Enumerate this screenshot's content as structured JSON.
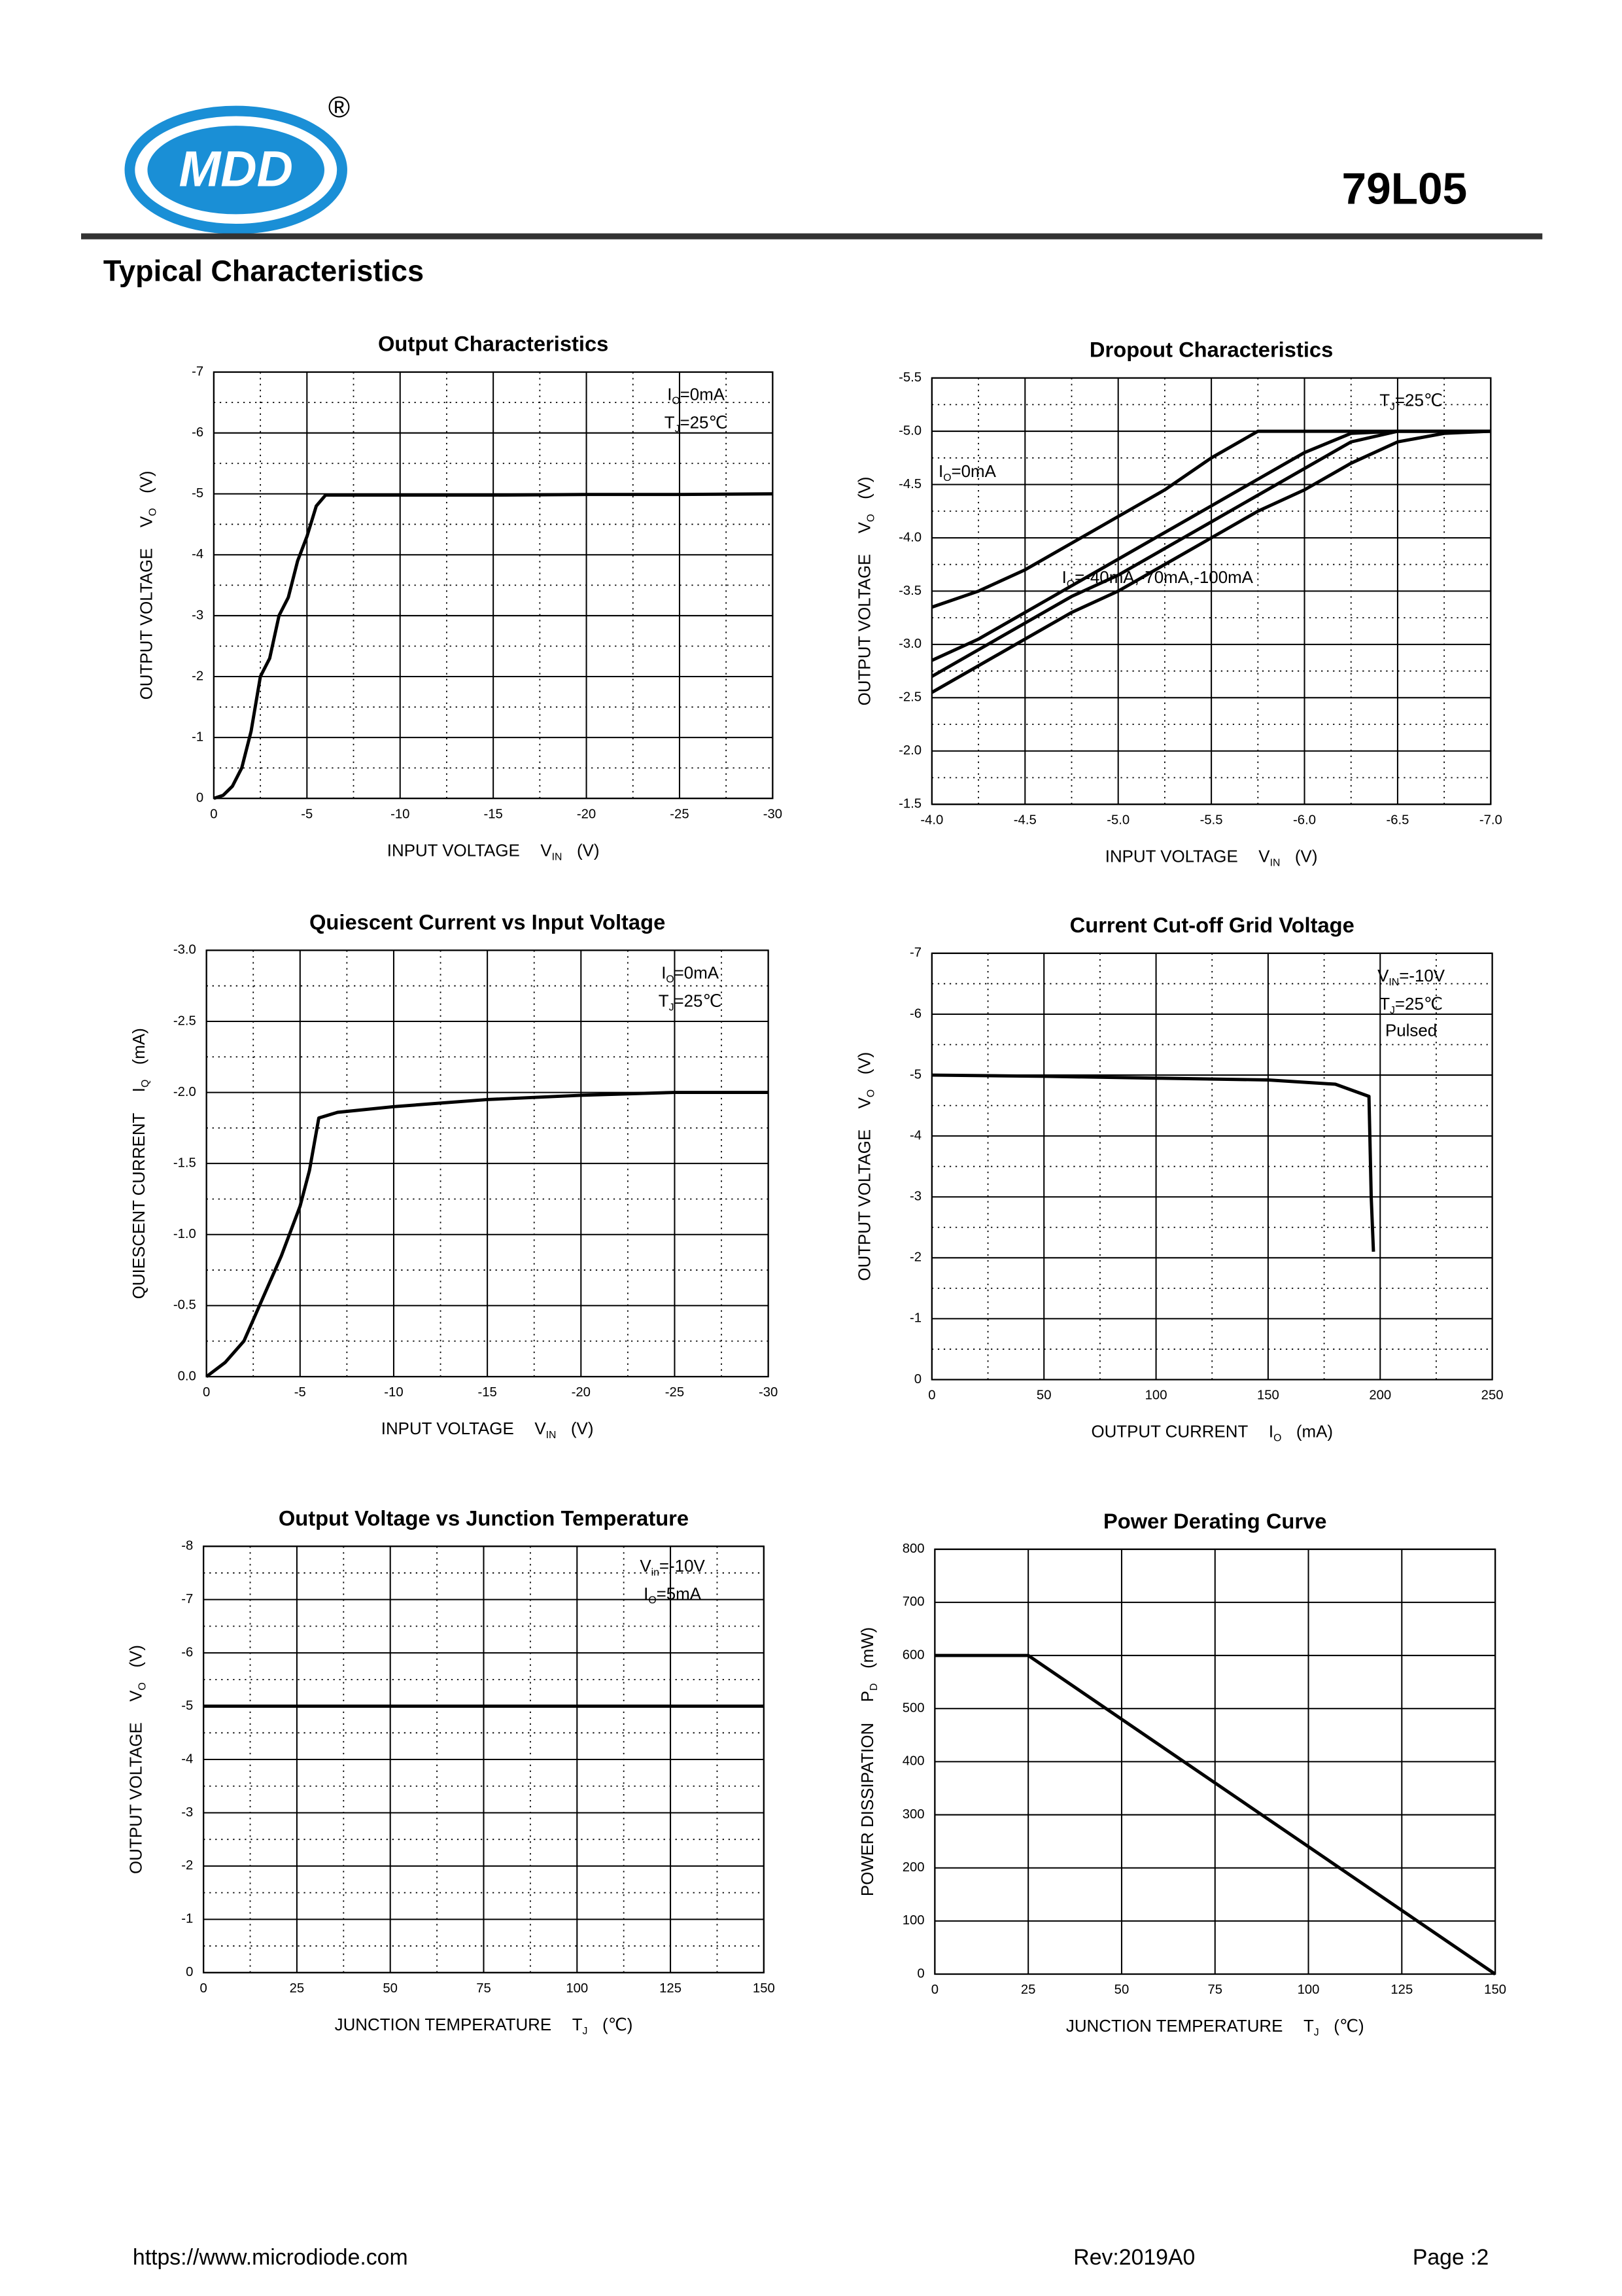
{
  "header": {
    "logo": "MDD",
    "registered": "®",
    "part": "79L05",
    "section_title": "Typical Characteristics"
  },
  "chart_data": [
    {
      "type": "line",
      "title": "Output  Characteristics",
      "x_label": {
        "text": "INPUT VOLTAGE",
        "symbol": "V",
        "sub": "IN",
        "unit": "(V)"
      },
      "y_label": {
        "text": "OUTPUT VOLTAGE",
        "symbol": "V",
        "sub": "O",
        "unit": "(V)"
      },
      "annotations": [
        [
          "I",
          "O",
          "=0mA"
        ],
        [
          "T",
          "J",
          "=25℃"
        ]
      ],
      "x": [
        0,
        -0.5,
        -1,
        -1.5,
        -2,
        -2.5,
        -3,
        -3.5,
        -4,
        -4.5,
        -5,
        -5.5,
        -6,
        -10,
        -15,
        -20,
        -25,
        -30
      ],
      "series": [
        {
          "color": "#000000",
          "values": [
            0,
            -0.05,
            -0.2,
            -0.5,
            -1.1,
            -2,
            -2.3,
            -3,
            -3.3,
            -3.9,
            -4.3,
            -4.8,
            -4.98,
            -4.98,
            -4.98,
            -4.99,
            -4.99,
            -5
          ]
        }
      ],
      "xlim": [
        0,
        -30
      ],
      "xticks": [
        0,
        -5,
        -10,
        -15,
        -20,
        -25,
        -30
      ],
      "ylim": [
        0,
        -7
      ],
      "yticks": [
        0,
        -1,
        -2,
        -3,
        -4,
        -5,
        -6,
        -7
      ],
      "grid": true,
      "minor_grid": true
    },
    {
      "type": "line",
      "title": "Dropout Characteristics",
      "x_label": {
        "text": "INPUT VOLTAGE",
        "symbol": "V",
        "sub": "IN",
        "unit": "(V)"
      },
      "y_label": {
        "text": "OUTPUT VOLTAGE",
        "symbol": "V",
        "sub": "O",
        "unit": "(V)"
      },
      "annotations": [
        [
          "T",
          "J",
          "=25℃"
        ],
        [
          "I",
          "O",
          "=0mA"
        ],
        [
          "I",
          "O",
          "=-40mA,-70mA,-100mA"
        ]
      ],
      "x": [
        -4.0,
        -4.25,
        -4.5,
        -4.75,
        -5.0,
        -5.25,
        -5.5,
        -5.75,
        -6.0,
        -6.25,
        -6.5,
        -6.75,
        -7.0
      ],
      "series": [
        {
          "color": "#000000",
          "values": [
            -3.35,
            -3.5,
            -3.7,
            -3.95,
            -4.2,
            -4.45,
            -4.75,
            -5.0,
            -5.0,
            -5.0,
            -5.0,
            -5.0,
            -5.0
          ]
        },
        {
          "color": "#000000",
          "values": [
            -2.85,
            -3.05,
            -3.3,
            -3.55,
            -3.8,
            -4.05,
            -4.3,
            -4.55,
            -4.8,
            -4.98,
            -5.0,
            -5.0,
            -5.0
          ]
        },
        {
          "color": "#000000",
          "values": [
            -2.7,
            -2.95,
            -3.2,
            -3.45,
            -3.65,
            -3.9,
            -4.15,
            -4.4,
            -4.65,
            -4.9,
            -5.0,
            -5.0,
            -5.0
          ]
        },
        {
          "color": "#000000",
          "values": [
            -2.55,
            -2.8,
            -3.05,
            -3.3,
            -3.5,
            -3.75,
            -4.0,
            -4.25,
            -4.45,
            -4.7,
            -4.9,
            -4.98,
            -5.0
          ]
        }
      ],
      "xlim": [
        -4.0,
        -7.0
      ],
      "xticks": [
        {
          "value": -4,
          "label": "-4.0"
        },
        -4.5,
        {
          "value": -5,
          "label": "-5.0"
        },
        -5.5,
        {
          "value": -6,
          "label": "-6.0"
        },
        -6.5,
        {
          "value": -7,
          "label": "-7.0"
        }
      ],
      "ylim": [
        -1.5,
        -5.5
      ],
      "yticks": [
        -1.5,
        {
          "value": -2,
          "label": "-2.0"
        },
        -2.5,
        {
          "value": -3,
          "label": "-3.0"
        },
        -3.5,
        {
          "value": -4,
          "label": "-4.0"
        },
        -4.5,
        {
          "value": -5,
          "label": "-5.0"
        },
        -5.5
      ],
      "grid": true,
      "minor_grid": true
    },
    {
      "type": "line",
      "title": "Quiescent Current vs Input Voltage",
      "x_label": {
        "text": "INPUT VOLTAGE",
        "symbol": "V",
        "sub": "IN",
        "unit": "(V)"
      },
      "y_label": {
        "text": "QUIESCENT CURRENT",
        "symbol": "I",
        "sub": "Q",
        "unit": "(mA)"
      },
      "annotations": [
        [
          "I",
          "O",
          "=0mA"
        ],
        [
          "T",
          "J",
          "=25℃"
        ]
      ],
      "x": [
        0,
        -1,
        -2,
        -2.5,
        -3,
        -4,
        -5,
        -5.5,
        -6,
        -7,
        -10,
        -15,
        -20,
        -25,
        -30
      ],
      "series": [
        {
          "color": "#000000",
          "values": [
            0,
            -0.1,
            -0.25,
            -0.4,
            -0.55,
            -0.85,
            -1.2,
            -1.45,
            -1.82,
            -1.86,
            -1.9,
            -1.95,
            -1.98,
            -2.0,
            -2.0
          ]
        }
      ],
      "xlim": [
        0,
        -30
      ],
      "xticks": [
        0,
        -5,
        -10,
        -15,
        -20,
        -25,
        -30
      ],
      "ylim": [
        0,
        -3
      ],
      "yticks": [
        {
          "value": 0,
          "label": "0.0"
        },
        -0.5,
        {
          "value": -1,
          "label": "-1.0"
        },
        -1.5,
        {
          "value": -2,
          "label": "-2.0"
        },
        -2.5,
        {
          "value": -3,
          "label": "-3.0"
        }
      ],
      "grid": true,
      "minor_grid": true
    },
    {
      "type": "line",
      "title": "Current  Cut-off Grid Voltage",
      "x_label": {
        "text": "OUTPUT CURRENT",
        "symbol": "I",
        "sub": "O",
        "unit": "(mA)"
      },
      "y_label": {
        "text": "OUTPUT VOLTAGE",
        "symbol": "V",
        "sub": "O",
        "unit": "(V)"
      },
      "annotations": [
        [
          "V",
          "IN",
          "=-10V"
        ],
        [
          "T",
          "J",
          "=25℃"
        ],
        [
          "Pulsed",
          "",
          ""
        ]
      ],
      "x": [
        0,
        50,
        100,
        150,
        180,
        195,
        196,
        197
      ],
      "series": [
        {
          "color": "#000000",
          "values": [
            -5.0,
            -4.98,
            -4.95,
            -4.92,
            -4.85,
            -4.65,
            -3,
            -2.1
          ]
        }
      ],
      "xlim": [
        0,
        250
      ],
      "xticks": [
        0,
        50,
        100,
        150,
        200,
        250
      ],
      "ylim": [
        0,
        -7
      ],
      "yticks": [
        0,
        -1,
        -2,
        -3,
        -4,
        -5,
        -6,
        -7
      ],
      "grid": true,
      "minor_grid": true
    },
    {
      "type": "line",
      "title": "Output Voltage vs Junction Temperature",
      "x_label": {
        "text": "JUNCTION TEMPERATURE",
        "symbol": "T",
        "sub": "J",
        "unit": "(℃)"
      },
      "y_label": {
        "text": "OUTPUT VOLTAGE",
        "symbol": "V",
        "sub": "O",
        "unit": "(V)"
      },
      "annotations": [
        [
          "V",
          "in",
          "=-10V"
        ],
        [
          "I",
          "O",
          "=5mA"
        ]
      ],
      "x": [
        0,
        150
      ],
      "series": [
        {
          "color": "#000000",
          "values": [
            -5,
            -5
          ]
        }
      ],
      "xlim": [
        0,
        150
      ],
      "xticks": [
        0,
        25,
        50,
        75,
        100,
        125,
        150
      ],
      "ylim": [
        0,
        -8
      ],
      "yticks": [
        0,
        -1,
        -2,
        -3,
        -4,
        -5,
        -6,
        -7,
        -8
      ],
      "grid": true,
      "minor_grid": true
    },
    {
      "type": "line",
      "title": "Power Derating Curve",
      "x_label": {
        "text": "JUNCTION TEMPERATURE",
        "symbol": "T",
        "sub": "J",
        "unit": "(℃)"
      },
      "y_label": {
        "text": "POWER DISSIPATION",
        "symbol": "P",
        "sub": "D",
        "unit": "(mW)"
      },
      "annotations": [],
      "x": [
        0,
        25,
        150
      ],
      "series": [
        {
          "color": "#000000",
          "values": [
            600,
            600,
            0
          ]
        }
      ],
      "xlim": [
        0,
        150
      ],
      "xticks": [
        0,
        25,
        50,
        75,
        100,
        125,
        150
      ],
      "ylim": [
        0,
        800
      ],
      "yticks": [
        0,
        100,
        200,
        300,
        400,
        500,
        600,
        700,
        800
      ],
      "grid": true,
      "minor_grid": false
    }
  ],
  "footer": {
    "url": "https://www.microdiode.com",
    "revision": "Rev:2019A0",
    "page": "Page :2"
  }
}
